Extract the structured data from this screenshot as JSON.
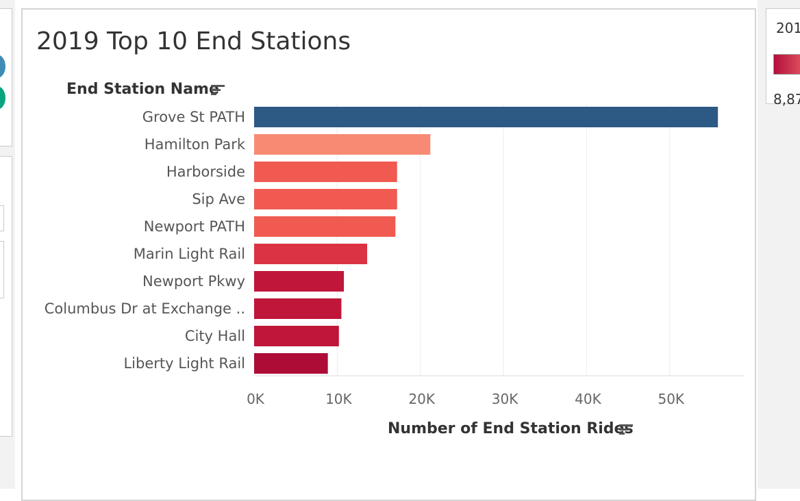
{
  "left_panel": {
    "dot_colors": [
      "#3f8db5",
      "#0aa57f"
    ]
  },
  "legend": {
    "title": "201",
    "min_label": "8,87"
  },
  "chart_data": {
    "type": "bar",
    "orientation": "horizontal",
    "title": "2019 Top 10 End Stations",
    "ylabel": "End Station Name",
    "xlabel": "Number of End Station Rides",
    "categories": [
      "Grove St PATH",
      "Hamilton Park",
      "Harborside",
      "Sip Ave",
      "Newport PATH",
      "Marin Light Rail",
      "Newport Pkwy",
      "Columbus Dr at Exchange ..",
      "City Hall",
      "Liberty Light Rail"
    ],
    "values": [
      55800,
      21200,
      17200,
      17200,
      17000,
      13600,
      10800,
      10500,
      10200,
      8870
    ],
    "colors": [
      "#2d5985",
      "#f88a73",
      "#f05a51",
      "#f05a51",
      "#f05a51",
      "#db3343",
      "#bf1639",
      "#bf1639",
      "#bf1639",
      "#ad0c37"
    ],
    "xlim": [
      0,
      59000
    ],
    "xticks": [
      0,
      10000,
      20000,
      30000,
      40000,
      50000
    ],
    "xtick_labels": [
      "0K",
      "10K",
      "20K",
      "30K",
      "40K",
      "50K"
    ],
    "grid": true
  }
}
